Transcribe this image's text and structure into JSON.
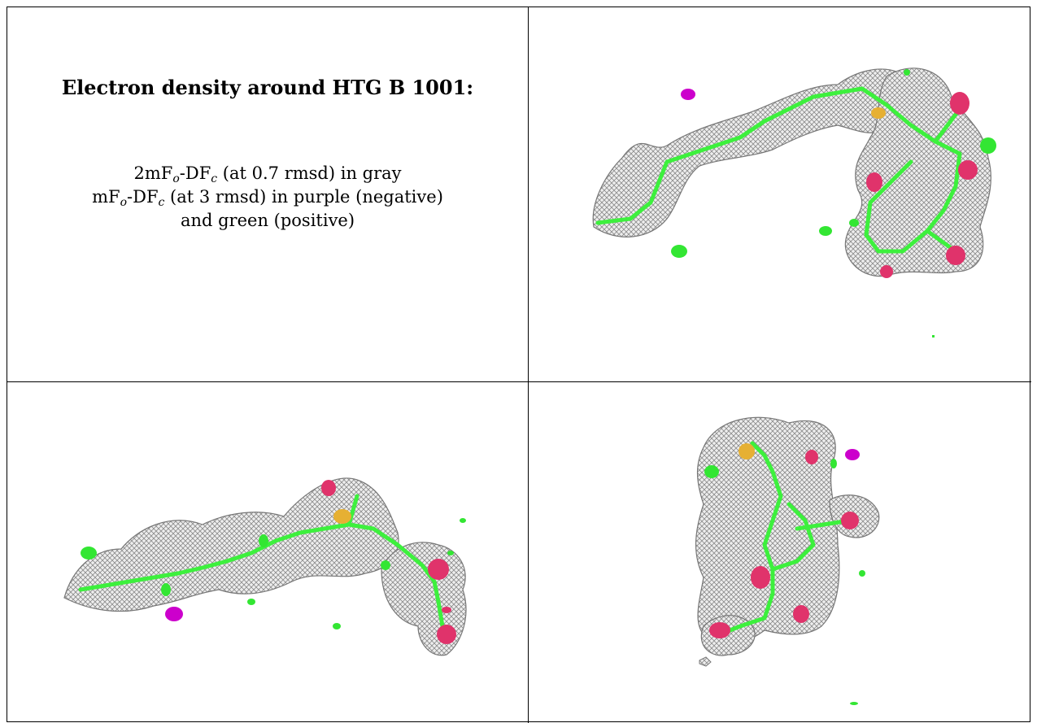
{
  "caption": {
    "title": "Electron density around HTG B 1001:",
    "line1": {
      "pre": "2mF",
      "sub1": "o",
      "mid": "-DF",
      "sub2": "c",
      "post": " (at 0.7 rmsd) in gray"
    },
    "line2": {
      "pre": "mF",
      "sub1": "o",
      "mid": "-DF",
      "sub2": "c",
      "post": " (at 3 rmsd) in purple (negative)"
    },
    "line3": "and green (positive)"
  },
  "colors": {
    "mesh_gray": "#8c8c8c",
    "mesh_fill": "#e8e8e8",
    "positive_green": "#33e633",
    "negative_purple": "#cc00cc",
    "oxygen_red": "#e0336b",
    "sulfur_yellow": "#e6b033",
    "bond_green": "#40f040"
  },
  "panels": [
    {
      "view": "top-right"
    },
    {
      "view": "bottom-left"
    },
    {
      "view": "bottom-right"
    }
  ]
}
